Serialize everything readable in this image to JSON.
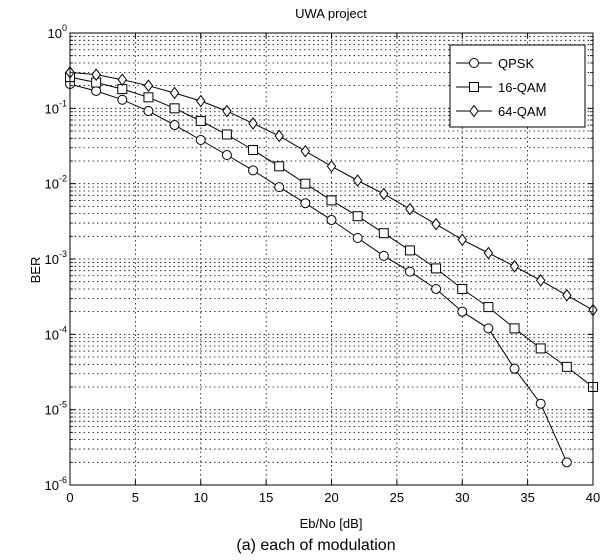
{
  "chart_data": {
    "type": "line",
    "title": "UWA project",
    "xlabel": "Eb/No [dB]",
    "ylabel": "BER",
    "caption": "(a) each of modulation",
    "xlim": [
      0,
      40
    ],
    "ylim": [
      1e-06,
      1
    ],
    "yscale": "log",
    "xticks": [
      0,
      5,
      10,
      15,
      20,
      25,
      30,
      35,
      40
    ],
    "ytick_bases": [
      "10",
      "10",
      "10",
      "10",
      "10",
      "10",
      "10"
    ],
    "ytick_exponents": [
      "-6",
      "-5",
      "-4",
      "-3",
      "-2",
      "-1",
      "0"
    ],
    "ytick_values": [
      1e-06,
      1e-05,
      0.0001,
      0.001,
      0.01,
      0.1,
      1
    ],
    "grid": true,
    "legend_position": "top-right",
    "series": [
      {
        "name": "QPSK",
        "marker": "circle",
        "x": [
          0,
          2,
          4,
          6,
          8,
          10,
          12,
          14,
          16,
          18,
          20,
          22,
          24,
          26,
          28,
          30,
          32,
          34,
          36,
          38
        ],
        "y": [
          0.21,
          0.17,
          0.13,
          0.092,
          0.06,
          0.038,
          0.024,
          0.015,
          0.009,
          0.0055,
          0.0033,
          0.0019,
          0.0011,
          0.00068,
          0.0004,
          0.0002,
          0.00012,
          3.5e-05,
          1.2e-05,
          2e-06
        ]
      },
      {
        "name": "16-QAM",
        "marker": "square",
        "x": [
          0,
          2,
          4,
          6,
          8,
          10,
          12,
          14,
          16,
          18,
          20,
          22,
          24,
          26,
          28,
          30,
          32,
          34,
          36,
          38,
          40
        ],
        "y": [
          0.26,
          0.22,
          0.18,
          0.14,
          0.1,
          0.068,
          0.045,
          0.028,
          0.017,
          0.01,
          0.006,
          0.0037,
          0.0022,
          0.0013,
          0.00075,
          0.0004,
          0.00023,
          0.00012,
          6.5e-05,
          3.7e-05,
          2e-05
        ]
      },
      {
        "name": "64-QAM",
        "marker": "diamond",
        "x": [
          0,
          2,
          4,
          6,
          8,
          10,
          12,
          14,
          16,
          18,
          20,
          22,
          24,
          26,
          28,
          30,
          32,
          34,
          36,
          38,
          40
        ],
        "y": [
          0.3,
          0.28,
          0.24,
          0.2,
          0.16,
          0.125,
          0.092,
          0.063,
          0.043,
          0.027,
          0.017,
          0.011,
          0.0073,
          0.0046,
          0.0029,
          0.0018,
          0.0012,
          0.0008,
          0.00052,
          0.00033,
          0.00021
        ]
      }
    ]
  }
}
